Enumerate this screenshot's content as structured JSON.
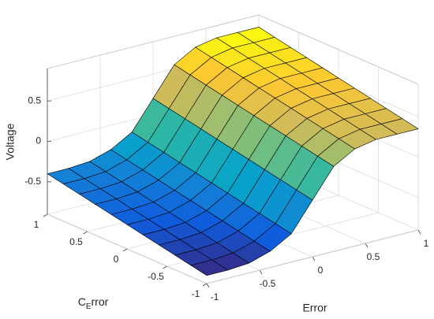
{
  "chart_data": {
    "type": "surface",
    "xlabel": "Error",
    "ylabel": [
      "C",
      "E",
      "rror"
    ],
    "zlabel": "Voltage",
    "x": [
      -1,
      -0.8,
      -0.6,
      -0.4,
      -0.2,
      0,
      0.2,
      0.4,
      0.6,
      0.8,
      1
    ],
    "y": [
      -1,
      -0.8,
      -0.6,
      -0.4,
      -0.2,
      0,
      0.2,
      0.4,
      0.6,
      0.8,
      1
    ],
    "z": [
      [
        -0.8,
        -0.8,
        -0.78,
        -0.7,
        -0.55,
        -0.2,
        0.15,
        0.3,
        0.35,
        0.35,
        0.35
      ],
      [
        -0.76,
        -0.76,
        -0.74,
        -0.66,
        -0.51,
        -0.16,
        0.19,
        0.34,
        0.39,
        0.39,
        0.39
      ],
      [
        -0.72,
        -0.72,
        -0.7,
        -0.62,
        -0.47,
        -0.12,
        0.23,
        0.38,
        0.43,
        0.43,
        0.43
      ],
      [
        -0.68,
        -0.68,
        -0.66,
        -0.58,
        -0.43,
        -0.08,
        0.27,
        0.42,
        0.47,
        0.47,
        0.47
      ],
      [
        -0.64,
        -0.64,
        -0.62,
        -0.54,
        -0.39,
        -0.04,
        0.31,
        0.46,
        0.51,
        0.51,
        0.51
      ],
      [
        -0.6,
        -0.6,
        -0.58,
        -0.5,
        -0.35,
        0,
        0.35,
        0.5,
        0.55,
        0.55,
        0.55
      ],
      [
        -0.56,
        -0.56,
        -0.54,
        -0.46,
        -0.31,
        0.04,
        0.39,
        0.54,
        0.59,
        0.59,
        0.59
      ],
      [
        -0.52,
        -0.52,
        -0.5,
        -0.42,
        -0.27,
        0.08,
        0.43,
        0.58,
        0.63,
        0.63,
        0.63
      ],
      [
        -0.48,
        -0.48,
        -0.46,
        -0.38,
        -0.23,
        0.12,
        0.47,
        0.62,
        0.67,
        0.67,
        0.67
      ],
      [
        -0.44,
        -0.44,
        -0.42,
        -0.34,
        -0.19,
        0.16,
        0.51,
        0.66,
        0.71,
        0.71,
        0.71
      ],
      [
        -0.4,
        -0.4,
        -0.38,
        -0.3,
        -0.15,
        0.2,
        0.55,
        0.7,
        0.75,
        0.75,
        0.75
      ]
    ],
    "xlim": [
      -1,
      1
    ],
    "xticks": [
      -1,
      -0.5,
      0,
      0.5,
      1
    ],
    "ylim": [
      -1,
      1
    ],
    "yticks": [
      -1,
      -0.5,
      0,
      0.5,
      1
    ],
    "zlim": [
      -0.9,
      0.9
    ],
    "zticks": [
      -0.5,
      0,
      0.5
    ],
    "grid": true,
    "colormap": [
      "#352a87",
      "#0f5cdd",
      "#1481d6",
      "#06a4ca",
      "#2eb7a4",
      "#87bf77",
      "#d1bb59",
      "#fec832",
      "#f9fb0e"
    ]
  }
}
